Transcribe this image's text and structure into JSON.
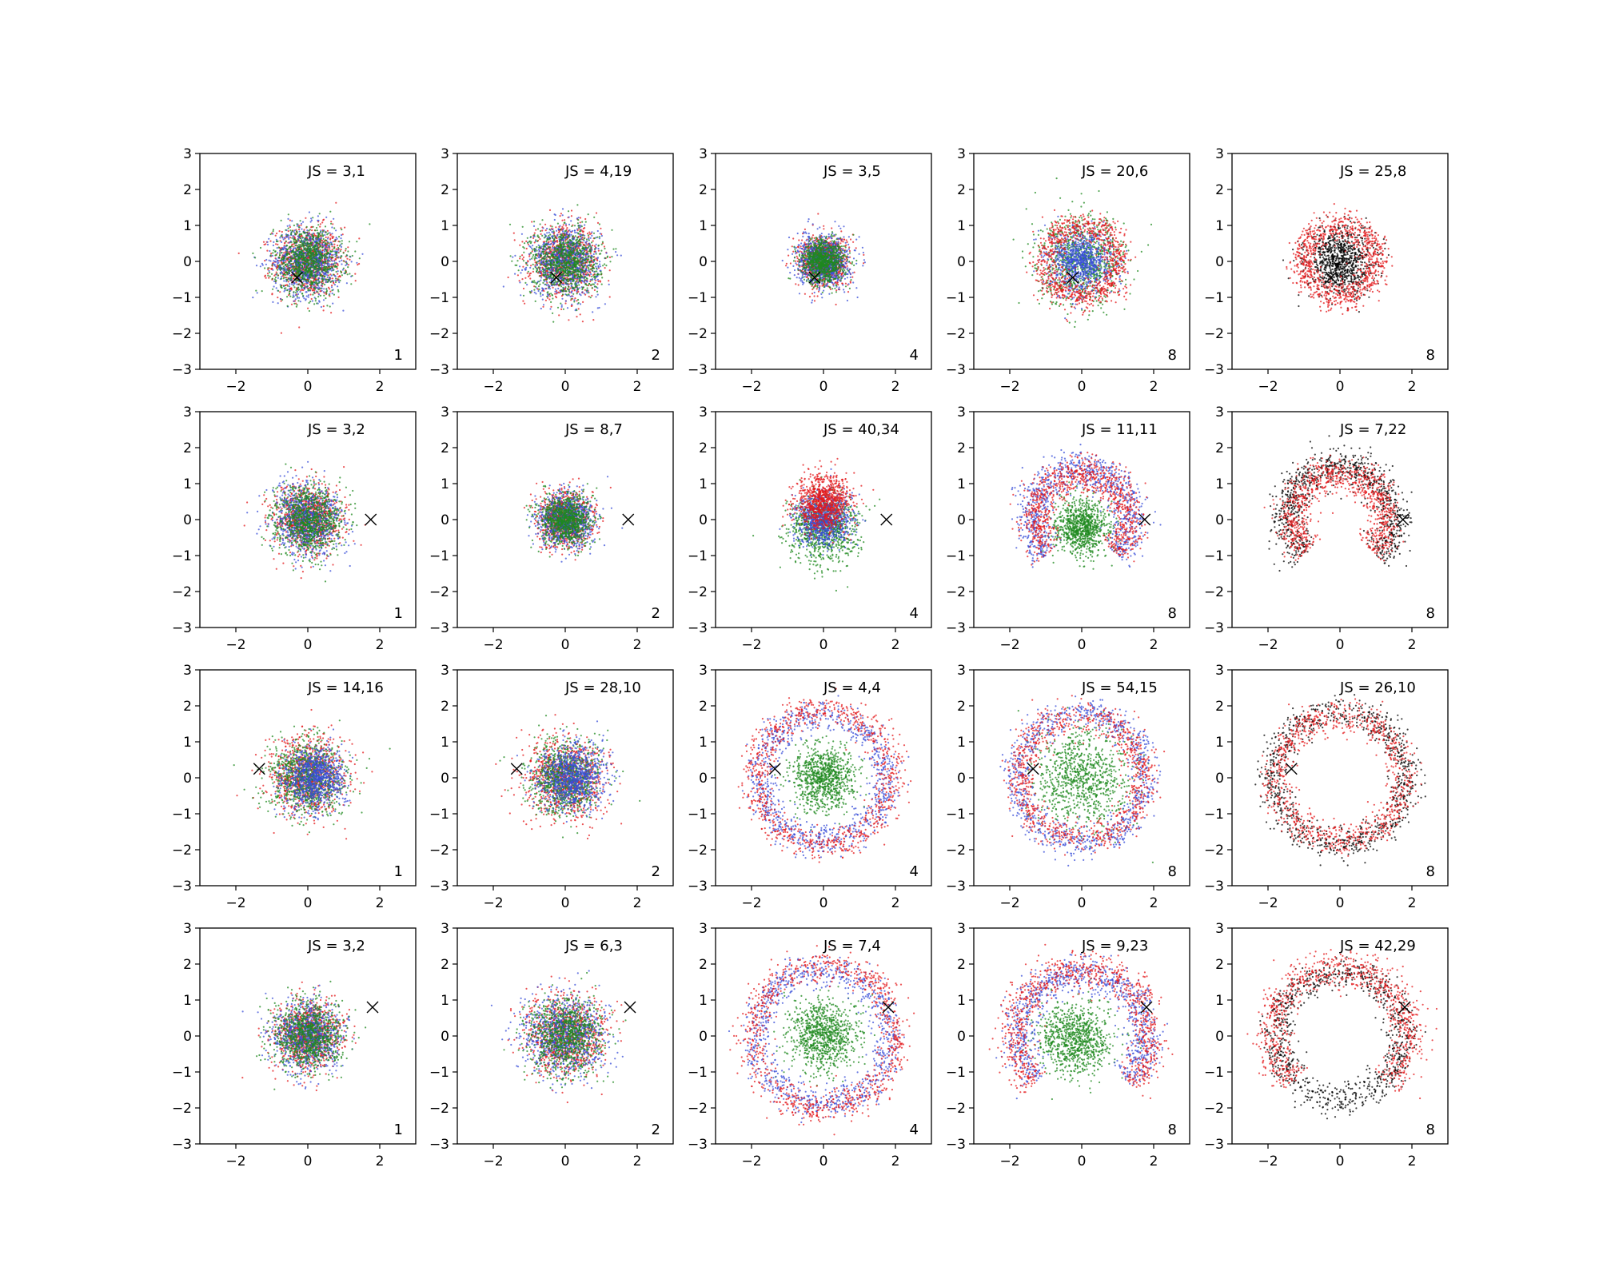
{
  "figure": {
    "grid_rows": 4,
    "grid_cols": 5,
    "axis_range": [
      -3,
      3
    ],
    "x_ticks": [
      -2,
      0,
      2
    ],
    "y_ticks": [
      -3,
      -2,
      -1,
      0,
      1,
      2,
      3
    ],
    "grid": false,
    "legend": "none",
    "colors": {
      "red": "#e41a1c",
      "blue": "#3a4fd8",
      "green": "#1f8a1f",
      "black": "#000000"
    }
  },
  "chart_data": [
    {
      "type": "scatter",
      "title": "JS = 3,1",
      "corner_label": "1",
      "marker": [
        -0.3,
        -0.45
      ],
      "series": [
        {
          "color": "red",
          "distribution": "gaussian",
          "center": [
            0,
            0
          ],
          "spread": 0.95
        },
        {
          "color": "blue",
          "distribution": "gaussian",
          "center": [
            0,
            0
          ],
          "spread": 0.95
        },
        {
          "color": "green",
          "distribution": "gaussian",
          "center": [
            0,
            0
          ],
          "spread": 0.95
        }
      ]
    },
    {
      "type": "scatter",
      "title": "JS = 4,19",
      "corner_label": "2",
      "marker": [
        -0.25,
        -0.45
      ],
      "series": [
        {
          "color": "red",
          "distribution": "gaussian",
          "center": [
            0,
            0
          ],
          "spread": 0.95
        },
        {
          "color": "blue",
          "distribution": "gaussian",
          "center": [
            0,
            0
          ],
          "spread": 0.95
        },
        {
          "color": "green",
          "distribution": "gaussian",
          "center": [
            0,
            0
          ],
          "spread": 0.95
        }
      ]
    },
    {
      "type": "scatter",
      "title": "JS = 3,5",
      "corner_label": "4",
      "marker": [
        -0.25,
        -0.45
      ],
      "series": [
        {
          "color": "red",
          "distribution": "gaussian",
          "center": [
            0,
            0
          ],
          "spread": 0.7
        },
        {
          "color": "blue",
          "distribution": "gaussian",
          "center": [
            0,
            0
          ],
          "spread": 0.7
        },
        {
          "color": "green",
          "distribution": "gaussian",
          "center": [
            0,
            0
          ],
          "spread": 0.6
        }
      ]
    },
    {
      "type": "scatter",
      "title": "JS = 20,6",
      "corner_label": "8",
      "marker": [
        -0.25,
        -0.45
      ],
      "series": [
        {
          "color": "green",
          "distribution": "gaussian",
          "center": [
            0,
            0
          ],
          "spread": 1.2
        },
        {
          "color": "blue",
          "distribution": "gaussian",
          "center": [
            0,
            0
          ],
          "spread": 0.85
        },
        {
          "color": "red",
          "distribution": "ring",
          "center": [
            0,
            0
          ],
          "spread": 1.0
        }
      ]
    },
    {
      "type": "scatter",
      "title": "JS = 25,8",
      "corner_label": "8",
      "marker": [
        -0.25,
        -0.45
      ],
      "series": [
        {
          "color": "black",
          "distribution": "gaussian",
          "center": [
            0,
            0
          ],
          "spread": 0.9
        },
        {
          "color": "red",
          "distribution": "ring",
          "center": [
            0,
            0
          ],
          "spread": 1.0
        }
      ]
    },
    {
      "type": "scatter",
      "title": "JS = 3,2",
      "corner_label": "1",
      "marker": [
        1.75,
        0
      ],
      "series": [
        {
          "color": "red",
          "distribution": "gaussian",
          "center": [
            0,
            0
          ],
          "spread": 0.95
        },
        {
          "color": "blue",
          "distribution": "gaussian",
          "center": [
            0,
            0
          ],
          "spread": 0.95
        },
        {
          "color": "green",
          "distribution": "gaussian",
          "center": [
            0,
            0
          ],
          "spread": 0.95
        }
      ]
    },
    {
      "type": "scatter",
      "title": "JS = 8,7",
      "corner_label": "2",
      "marker": [
        1.75,
        0
      ],
      "series": [
        {
          "color": "red",
          "distribution": "gaussian",
          "center": [
            0,
            0
          ],
          "spread": 0.75
        },
        {
          "color": "blue",
          "distribution": "gaussian",
          "center": [
            0,
            0
          ],
          "spread": 0.75
        },
        {
          "color": "green",
          "distribution": "gaussian",
          "center": [
            0,
            0
          ],
          "spread": 0.7
        }
      ]
    },
    {
      "type": "scatter",
      "title": "JS = 40,34",
      "corner_label": "4",
      "marker": [
        1.75,
        0
      ],
      "series": [
        {
          "color": "green",
          "distribution": "gaussian",
          "center": [
            0,
            -0.3
          ],
          "spread": 0.95
        },
        {
          "color": "blue",
          "distribution": "gaussian",
          "center": [
            0,
            0
          ],
          "spread": 0.75
        },
        {
          "color": "red",
          "distribution": "gaussian",
          "center": [
            0,
            0.5
          ],
          "spread": 0.75
        }
      ]
    },
    {
      "type": "scatter",
      "title": "JS = 11,11",
      "corner_label": "8",
      "marker": [
        1.75,
        0
      ],
      "series": [
        {
          "color": "green",
          "distribution": "gaussian",
          "center": [
            0,
            -0.2
          ],
          "spread": 0.75
        },
        {
          "color": "blue",
          "distribution": "arc",
          "center": [
            0,
            0
          ],
          "spread": 1.4
        },
        {
          "color": "red",
          "distribution": "arc",
          "center": [
            0,
            0
          ],
          "spread": 1.3
        }
      ]
    },
    {
      "type": "scatter",
      "title": "JS = 7,22",
      "corner_label": "8",
      "marker": [
        1.75,
        0
      ],
      "series": [
        {
          "color": "black",
          "distribution": "arc",
          "center": [
            0,
            0
          ],
          "spread": 1.5
        },
        {
          "color": "red",
          "distribution": "arc",
          "center": [
            0,
            0
          ],
          "spread": 1.3
        }
      ]
    },
    {
      "type": "scatter",
      "title": "JS = 14,16",
      "corner_label": "1",
      "marker": [
        -1.35,
        0.25
      ],
      "series": [
        {
          "color": "red",
          "distribution": "gaussian",
          "center": [
            0,
            0
          ],
          "spread": 1.05
        },
        {
          "color": "green",
          "distribution": "gaussian",
          "center": [
            0,
            0
          ],
          "spread": 1.05
        },
        {
          "color": "blue",
          "distribution": "gaussian",
          "center": [
            0.2,
            0
          ],
          "spread": 0.85
        }
      ]
    },
    {
      "type": "scatter",
      "title": "JS = 28,10",
      "corner_label": "2",
      "marker": [
        -1.35,
        0.25
      ],
      "series": [
        {
          "color": "red",
          "distribution": "gaussian",
          "center": [
            0,
            0
          ],
          "spread": 1.1
        },
        {
          "color": "green",
          "distribution": "gaussian",
          "center": [
            0,
            0
          ],
          "spread": 1.0
        },
        {
          "color": "blue",
          "distribution": "gaussian",
          "center": [
            0.2,
            0
          ],
          "spread": 0.9
        }
      ]
    },
    {
      "type": "scatter",
      "title": "JS = 4,4",
      "corner_label": "4",
      "marker": [
        -1.35,
        0.25
      ],
      "series": [
        {
          "color": "green",
          "distribution": "gaussian",
          "center": [
            0,
            0
          ],
          "spread": 0.85
        },
        {
          "color": "blue",
          "distribution": "ring",
          "center": [
            0,
            0
          ],
          "spread": 1.75
        },
        {
          "color": "red",
          "distribution": "ring",
          "center": [
            0,
            0
          ],
          "spread": 1.9
        }
      ]
    },
    {
      "type": "scatter",
      "title": "JS = 54,15",
      "corner_label": "8",
      "marker": [
        -1.35,
        0.25
      ],
      "series": [
        {
          "color": "green",
          "distribution": "gaussian",
          "center": [
            0,
            0
          ],
          "spread": 1.3
        },
        {
          "color": "blue",
          "distribution": "ring",
          "center": [
            0,
            0
          ],
          "spread": 1.8
        },
        {
          "color": "red",
          "distribution": "ring",
          "center": [
            0,
            0
          ],
          "spread": 1.7
        }
      ]
    },
    {
      "type": "scatter",
      "title": "JS = 26,10",
      "corner_label": "8",
      "marker": [
        -1.35,
        0.25
      ],
      "series": [
        {
          "color": "black",
          "distribution": "ring",
          "center": [
            0,
            0
          ],
          "spread": 1.85
        },
        {
          "color": "red",
          "distribution": "ring",
          "center": [
            0,
            0
          ],
          "spread": 1.75
        }
      ]
    },
    {
      "type": "scatter",
      "title": "JS = 3,2",
      "corner_label": "1",
      "marker": [
        1.8,
        0.8
      ],
      "series": [
        {
          "color": "red",
          "distribution": "gaussian",
          "center": [
            0,
            0
          ],
          "spread": 0.95
        },
        {
          "color": "blue",
          "distribution": "gaussian",
          "center": [
            0,
            0
          ],
          "spread": 0.95
        },
        {
          "color": "green",
          "distribution": "gaussian",
          "center": [
            0,
            0
          ],
          "spread": 0.95
        }
      ]
    },
    {
      "type": "scatter",
      "title": "JS = 6,3",
      "corner_label": "2",
      "marker": [
        1.8,
        0.8
      ],
      "series": [
        {
          "color": "red",
          "distribution": "gaussian",
          "center": [
            0,
            0
          ],
          "spread": 1.1
        },
        {
          "color": "blue",
          "distribution": "gaussian",
          "center": [
            0,
            0
          ],
          "spread": 1.1
        },
        {
          "color": "green",
          "distribution": "gaussian",
          "center": [
            0,
            0
          ],
          "spread": 1.05
        }
      ]
    },
    {
      "type": "scatter",
      "title": "JS = 7,4",
      "corner_label": "4",
      "marker": [
        1.8,
        0.8
      ],
      "series": [
        {
          "color": "green",
          "distribution": "gaussian",
          "center": [
            0,
            0
          ],
          "spread": 0.95
        },
        {
          "color": "blue",
          "distribution": "ring",
          "center": [
            0,
            0
          ],
          "spread": 1.85
        },
        {
          "color": "red",
          "distribution": "ring",
          "center": [
            0,
            0
          ],
          "spread": 2.0
        }
      ]
    },
    {
      "type": "scatter",
      "title": "JS = 9,23",
      "corner_label": "8",
      "marker": [
        1.8,
        0.8
      ],
      "series": [
        {
          "color": "green",
          "distribution": "gaussian",
          "center": [
            -0.2,
            -0.1
          ],
          "spread": 1.0
        },
        {
          "color": "blue",
          "distribution": "arc",
          "center": [
            0,
            0
          ],
          "spread": 1.75
        },
        {
          "color": "red",
          "distribution": "arc",
          "center": [
            0,
            0
          ],
          "spread": 1.9
        }
      ]
    },
    {
      "type": "scatter",
      "title": "JS = 42,29",
      "corner_label": "8",
      "marker": [
        1.8,
        0.8
      ],
      "series": [
        {
          "color": "black",
          "distribution": "ring",
          "center": [
            0,
            0
          ],
          "spread": 1.75
        },
        {
          "color": "red",
          "distribution": "arc",
          "center": [
            0,
            0
          ],
          "spread": 1.9
        }
      ]
    }
  ]
}
